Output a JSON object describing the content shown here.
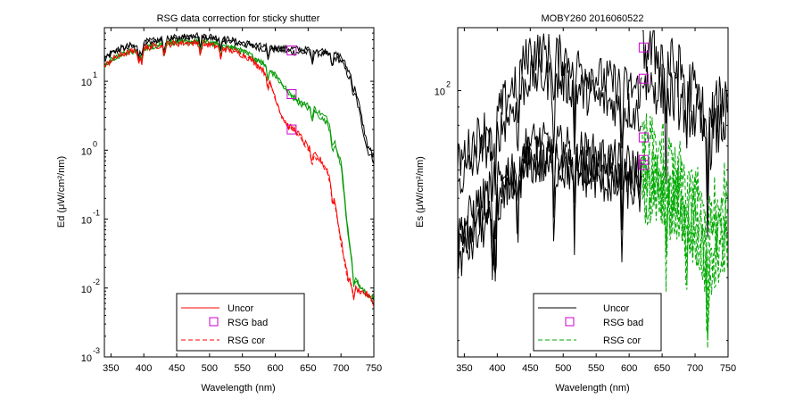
{
  "chart_data": [
    {
      "type": "line",
      "title": "RSG data correction for sticky shutter",
      "xlabel": "Wavelength (nm)",
      "ylabel": "Ed (μW/cm²/nm)",
      "xlim": [
        340,
        750
      ],
      "ylim": [
        0.001,
        60
      ],
      "yscale": "log",
      "xticks": [
        "350",
        "400",
        "450",
        "500",
        "550",
        "600",
        "650",
        "700",
        "750"
      ],
      "yticks": [
        {
          "base": "10",
          "exp": "1",
          "value": 10
        },
        {
          "base": "10",
          "exp": "0",
          "value": 1
        },
        {
          "base": "10",
          "exp": "-1",
          "value": 0.1
        },
        {
          "base": "10",
          "exp": "-2",
          "value": 0.01
        },
        {
          "base": "10",
          "exp": "-3",
          "value": 0.001
        }
      ],
      "legend_position": "bottom-center",
      "legend": [
        {
          "label": "Uncor",
          "color": "#ff0000",
          "style": "solid"
        },
        {
          "label": "RSG bad",
          "color": "#cc00cc",
          "style": "square"
        },
        {
          "label": "RSG cor",
          "color": "#ff0000",
          "style": "dashed"
        }
      ],
      "series": [
        {
          "color": "#000000",
          "style": "solid",
          "noise": 0.05,
          "x": [
            340,
            350,
            360,
            370,
            380,
            390,
            400,
            420,
            440,
            460,
            480,
            500,
            520,
            540,
            560,
            580,
            600,
            620,
            640,
            660,
            680,
            700,
            720,
            740,
            750
          ],
          "y": [
            20,
            25,
            28,
            30,
            32,
            30,
            36,
            38,
            40,
            42,
            45,
            42,
            40,
            36,
            33,
            30,
            29,
            27,
            26,
            26,
            24,
            20,
            8,
            1.0,
            0.7
          ]
        },
        {
          "color": "#000000",
          "style": "solid",
          "noise": 0.05,
          "x": [
            340,
            350,
            360,
            370,
            380,
            390,
            400,
            420,
            440,
            460,
            480,
            500,
            520,
            540,
            560,
            580,
            600,
            620,
            640,
            660,
            680,
            700,
            720,
            740,
            750
          ],
          "y": [
            21,
            26,
            29,
            31,
            33,
            31,
            37,
            39,
            42,
            44,
            47,
            45,
            42,
            38,
            35,
            32,
            31,
            30,
            29,
            29,
            27,
            23,
            10,
            1.2,
            0.8
          ]
        },
        {
          "color": "#009900",
          "style": "solid",
          "noise": 0.04,
          "x": [
            340,
            350,
            360,
            370,
            380,
            390,
            400,
            420,
            440,
            460,
            480,
            500,
            520,
            540,
            560,
            580,
            600,
            620,
            640,
            660,
            680,
            700,
            710,
            720,
            730,
            740,
            750
          ],
          "y": [
            16,
            20,
            23,
            25,
            27,
            26,
            30,
            33,
            36,
            37,
            38,
            36,
            33,
            30,
            25,
            19,
            13,
            7,
            5,
            4,
            2.8,
            0.7,
            0.08,
            0.015,
            0.01,
            0.008,
            0.007
          ]
        },
        {
          "color": "#009900",
          "style": "solid",
          "noise": 0.04,
          "x": [
            340,
            350,
            360,
            370,
            380,
            390,
            400,
            420,
            440,
            460,
            480,
            500,
            520,
            540,
            560,
            580,
            600,
            620,
            640,
            660,
            680,
            700,
            710,
            720,
            730,
            740,
            750
          ],
          "y": [
            16,
            20,
            23,
            25,
            27,
            26,
            30,
            33,
            36,
            37,
            38,
            36,
            33,
            30,
            24,
            18,
            12,
            6.5,
            4.6,
            3.6,
            2.4,
            0.6,
            0.07,
            0.014,
            0.01,
            0.008,
            0.007
          ]
        },
        {
          "color": "#ff0000",
          "style": "solid",
          "noise": 0.05,
          "x": [
            340,
            350,
            360,
            370,
            380,
            390,
            400,
            420,
            440,
            460,
            480,
            500,
            520,
            540,
            560,
            580,
            590,
            600,
            610,
            620,
            630,
            640,
            650,
            660,
            670,
            680,
            690,
            700,
            710,
            720,
            730,
            740,
            750
          ],
          "y": [
            16,
            20,
            23,
            25,
            27,
            26,
            30,
            33,
            35,
            36,
            36,
            34,
            30,
            27,
            22,
            15,
            11,
            6,
            3.2,
            2.2,
            2.0,
            1.5,
            1.1,
            0.85,
            0.7,
            0.5,
            0.2,
            0.05,
            0.015,
            0.01,
            0.009,
            0.008,
            0.006
          ]
        },
        {
          "color": "#ff0000",
          "style": "dashed",
          "noise": 0.02,
          "x": [
            340,
            350,
            360,
            370,
            380,
            390,
            400,
            420,
            440,
            460,
            480,
            500,
            520,
            540,
            560,
            580,
            590,
            600,
            610,
            620,
            630,
            640,
            650,
            660,
            670,
            680,
            690,
            700,
            710,
            720,
            730,
            740,
            750
          ],
          "y": [
            16,
            20,
            23,
            25,
            27,
            26,
            30,
            33,
            35,
            36,
            36,
            34,
            30,
            27,
            22,
            15,
            11,
            5.5,
            3.0,
            2.1,
            1.9,
            1.4,
            1.0,
            0.8,
            0.65,
            0.45,
            0.18,
            0.045,
            0.013,
            0.01,
            0.009,
            0.008,
            0.006
          ]
        }
      ],
      "markers": {
        "color": "#cc00cc",
        "x": [
          625,
          625,
          625
        ],
        "y": [
          28,
          6.5,
          2.0
        ]
      }
    },
    {
      "type": "line",
      "title": "MOBY260  2016060522",
      "xlabel": "Wavelength (nm)",
      "ylabel": "Es (μW/cm²/nm)",
      "xlim": [
        340,
        750
      ],
      "ylim": [
        18,
        150
      ],
      "yscale": "log",
      "xticks": [
        "350",
        "400",
        "450",
        "500",
        "550",
        "600",
        "650",
        "700",
        "750"
      ],
      "yticks": [
        {
          "base": "10",
          "exp": "2",
          "value": 100
        }
      ],
      "legend_position": "bottom-center",
      "legend": [
        {
          "label": "Uncor",
          "color": "#000000",
          "style": "solid"
        },
        {
          "label": "RSG bad",
          "color": "#cc00cc",
          "style": "square"
        },
        {
          "label": "RSG cor",
          "color": "#00aa00",
          "style": "dashed"
        }
      ],
      "series": [
        {
          "color": "#000000",
          "style": "solid",
          "noise": 0.06,
          "x": [
            340,
            370,
            400,
            450,
            500,
            550,
            600,
            620
          ],
          "y": [
            62,
            75,
            85,
            130,
            125,
            110,
            102,
            100
          ]
        },
        {
          "color": "#000000",
          "style": "solid",
          "noise": 0.06,
          "x": [
            340,
            370,
            400,
            450,
            500,
            550,
            600,
            620
          ],
          "y": [
            55,
            65,
            75,
            110,
            105,
            95,
            88,
            85
          ]
        },
        {
          "color": "#000000",
          "style": "solid",
          "noise": 0.06,
          "x": [
            340,
            370,
            400,
            450,
            500,
            550,
            600,
            620
          ],
          "y": [
            40,
            48,
            55,
            72,
            70,
            66,
            62,
            60
          ]
        },
        {
          "color": "#000000",
          "style": "solid",
          "noise": 0.06,
          "x": [
            340,
            370,
            400,
            450,
            500,
            550,
            600,
            620
          ],
          "y": [
            36,
            43,
            50,
            66,
            64,
            60,
            56,
            55
          ]
        },
        {
          "color": "#000000",
          "style": "solid",
          "noise": 0.06,
          "x": [
            340,
            370,
            400,
            450,
            500,
            550,
            600,
            620
          ],
          "y": [
            33,
            39,
            46,
            62,
            60,
            56,
            53,
            51
          ]
        },
        {
          "color": "#000000",
          "style": "solid",
          "noise": 0.08,
          "x": [
            620,
            650,
            680,
            700,
            720,
            740,
            750
          ],
          "y": [
            132,
            125,
            112,
            100,
            80,
            95,
            98
          ]
        },
        {
          "color": "#000000",
          "style": "solid",
          "noise": 0.08,
          "x": [
            620,
            650,
            680,
            700,
            720,
            740,
            750
          ],
          "y": [
            108,
            100,
            92,
            85,
            70,
            80,
            85
          ]
        },
        {
          "color": "#00aa00",
          "style": "dashed",
          "noise": 0.08,
          "x": [
            620,
            650,
            680,
            700,
            720,
            740,
            750
          ],
          "y": [
            74,
            68,
            60,
            55,
            45,
            52,
            55
          ]
        },
        {
          "color": "#00aa00",
          "style": "dashed",
          "noise": 0.08,
          "x": [
            620,
            650,
            680,
            700,
            720,
            740,
            750
          ],
          "y": [
            64,
            60,
            54,
            48,
            38,
            45,
            48
          ]
        },
        {
          "color": "#00aa00",
          "style": "dashed",
          "noise": 0.08,
          "x": [
            620,
            650,
            680,
            700,
            720,
            740,
            750
          ],
          "y": [
            58,
            55,
            50,
            44,
            34,
            40,
            44
          ]
        },
        {
          "color": "#00aa00",
          "style": "dashed",
          "noise": 0.08,
          "x": [
            620,
            650,
            680,
            700,
            720,
            740,
            750
          ],
          "y": [
            53,
            50,
            45,
            40,
            31,
            37,
            40
          ]
        },
        {
          "color": "#00aa00",
          "style": "dashed",
          "noise": 0.08,
          "x": [
            620,
            650,
            680,
            700,
            720,
            740,
            750
          ],
          "y": [
            50,
            47,
            43,
            38,
            29,
            35,
            38
          ]
        }
      ],
      "markers": {
        "color": "#cc00cc",
        "x": [
          622,
          622,
          622,
          622,
          622
        ],
        "y": [
          132,
          108,
          74,
          64,
          62
        ]
      }
    }
  ]
}
